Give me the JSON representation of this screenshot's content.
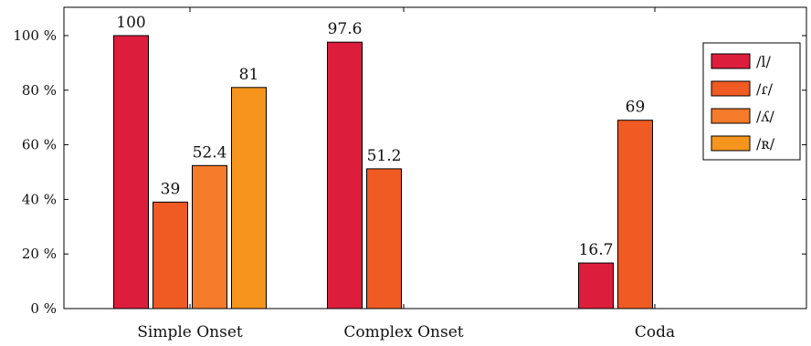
{
  "chart_data": {
    "type": "bar",
    "categories": [
      "Simple Onset",
      "Complex Onset",
      "Coda"
    ],
    "series": [
      {
        "name": "/l/",
        "color": "#dc1e3c",
        "values": [
          100,
          97.6,
          16.7
        ]
      },
      {
        "name": "/ɾ/",
        "color": "#f05a23",
        "values": [
          39,
          51.2,
          69
        ]
      },
      {
        "name": "/ʎ/",
        "color": "#f37b2a",
        "values": [
          52.4,
          null,
          null
        ]
      },
      {
        "name": "/ʀ/",
        "color": "#f5951e",
        "values": [
          81,
          null,
          null
        ]
      }
    ],
    "value_labels": [
      [
        "100",
        "97.6",
        "16.7"
      ],
      [
        "39",
        "51.2",
        "69"
      ],
      [
        "52.4",
        "",
        ""
      ],
      [
        "81",
        "",
        ""
      ]
    ],
    "y_ticks": [
      0,
      20,
      40,
      60,
      80,
      100
    ],
    "y_tick_labels": [
      "0 %",
      "20 %",
      "40 %",
      "60 %",
      "80 %",
      "100 %"
    ],
    "ylim": [
      0,
      100
    ],
    "grid": false,
    "legend_position": "top-right"
  }
}
